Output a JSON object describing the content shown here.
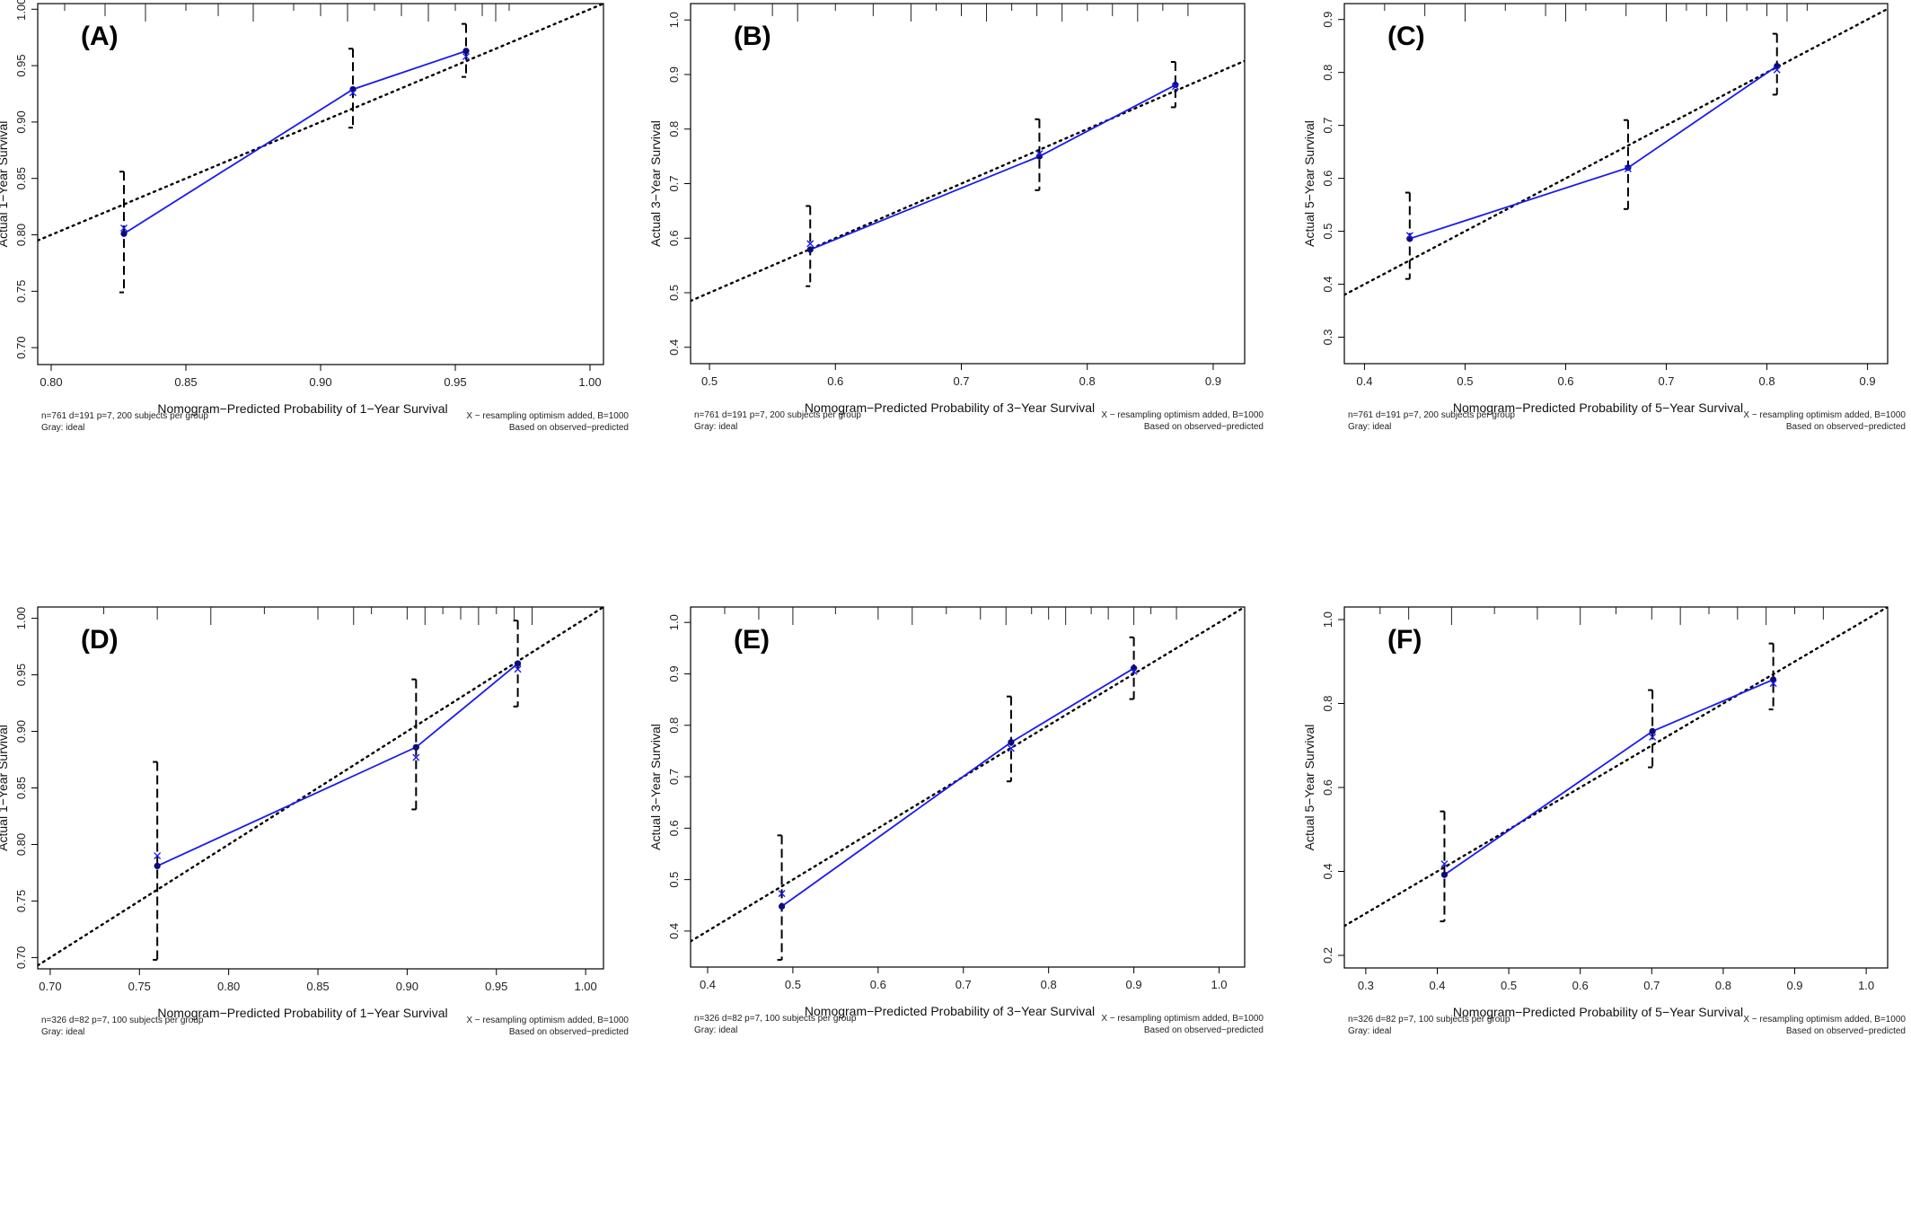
{
  "chart_data": [
    {
      "type": "line",
      "panel_label": "(A)",
      "xlabel": "Nomogram−Predicted Probability of 1−Year Survival",
      "ylabel": "Actual 1−Year Survival",
      "xlim": [
        0.795,
        1.005
      ],
      "ylim": [
        0.685,
        1.005
      ],
      "xticks": [
        "0.80",
        "0.85",
        "0.90",
        "0.95",
        "1.00"
      ],
      "yticks": [
        "0.70",
        "0.75",
        "0.80",
        "0.85",
        "0.90",
        "0.95",
        "1.00"
      ],
      "ideal_line": {
        "from": [
          0.795,
          0.795
        ],
        "to": [
          1.005,
          1.005
        ]
      },
      "observed": {
        "x": [
          0.827,
          0.912,
          0.954
        ],
        "y": [
          0.801,
          0.929,
          0.963
        ]
      },
      "bias_corrected": {
        "x": [
          0.827,
          0.912,
          0.954
        ],
        "y": [
          0.806,
          0.926,
          0.958
        ]
      },
      "ci": [
        [
          0.749,
          0.856
        ],
        [
          0.895,
          0.965
        ],
        [
          0.94,
          0.987
        ]
      ],
      "rug": [
        0.805,
        0.82,
        0.835,
        0.85,
        0.862,
        0.875,
        0.89,
        0.9,
        0.91,
        0.92,
        0.93,
        0.94,
        0.95,
        0.96,
        0.965,
        0.97
      ],
      "footnote_left": [
        "n=761 d=191 p=7, 200 subjects per group",
        "Gray: ideal"
      ],
      "footnote_right": [
        "X − resampling optimism added, B=1000",
        "Based on observed−predicted"
      ]
    },
    {
      "type": "line",
      "panel_label": "(B)",
      "xlabel": "Nomogram−Predicted Probability of 3−Year Survival",
      "ylabel": "Actual 3−Year Survival",
      "xlim": [
        0.485,
        0.925
      ],
      "ylim": [
        0.37,
        1.03
      ],
      "xticks": [
        "0.5",
        "0.6",
        "0.7",
        "0.8",
        "0.9"
      ],
      "yticks": [
        "0.4",
        "0.5",
        "0.6",
        "0.7",
        "0.8",
        "0.9",
        "1.0"
      ],
      "ideal_line": {
        "from": [
          0.485,
          0.485
        ],
        "to": [
          0.925,
          0.925
        ]
      },
      "observed": {
        "x": [
          0.58,
          0.762,
          0.87
        ],
        "y": [
          0.579,
          0.75,
          0.881
        ]
      },
      "bias_corrected": {
        "x": [
          0.58,
          0.762,
          0.87
        ],
        "y": [
          0.59,
          0.755,
          0.878
        ]
      },
      "ci": [
        [
          0.512,
          0.659
        ],
        [
          0.688,
          0.818
        ],
        [
          0.84,
          0.923
        ]
      ],
      "rug": [
        0.52,
        0.55,
        0.57,
        0.6,
        0.63,
        0.66,
        0.68,
        0.7,
        0.72,
        0.74,
        0.76,
        0.78,
        0.8,
        0.82,
        0.84,
        0.86,
        0.88
      ],
      "footnote_left": [
        "n=761 d=191 p=7, 200 subjects per group",
        "Gray: ideal"
      ],
      "footnote_right": [
        "X − resampling optimism added, B=1000",
        "Based on observed−predicted"
      ]
    },
    {
      "type": "line",
      "panel_label": "(C)",
      "xlabel": "Nomogram−Predicted Probability of 5−Year Survival",
      "ylabel": "Actual 5−Year Survival",
      "xlim": [
        0.38,
        0.92
      ],
      "ylim": [
        0.25,
        0.93
      ],
      "xticks": [
        "0.4",
        "0.5",
        "0.6",
        "0.7",
        "0.8",
        "0.9"
      ],
      "yticks": [
        "0.3",
        "0.4",
        "0.5",
        "0.6",
        "0.7",
        "0.8",
        "0.9"
      ],
      "ideal_line": {
        "from": [
          0.38,
          0.38
        ],
        "to": [
          0.92,
          0.92
        ]
      },
      "observed": {
        "x": [
          0.445,
          0.662,
          0.81
        ],
        "y": [
          0.486,
          0.62,
          0.812
        ]
      },
      "bias_corrected": {
        "x": [
          0.445,
          0.662,
          0.81
        ],
        "y": [
          0.492,
          0.618,
          0.805
        ]
      },
      "ci": [
        [
          0.41,
          0.573
        ],
        [
          0.542,
          0.71
        ],
        [
          0.758,
          0.873
        ]
      ],
      "rug": [
        0.42,
        0.46,
        0.5,
        0.54,
        0.58,
        0.6,
        0.62,
        0.66,
        0.7,
        0.72,
        0.74,
        0.76,
        0.78,
        0.8,
        0.82,
        0.84
      ],
      "footnote_left": [
        "n=761 d=191 p=7, 200 subjects per group",
        "Gray: ideal"
      ],
      "footnote_right": [
        "X − resampling optimism added, B=1000",
        "Based on observed−predicted"
      ]
    },
    {
      "type": "line",
      "panel_label": "(D)",
      "xlabel": "Nomogram−Predicted Probability of 1−Year Survival",
      "ylabel": "Actual 1−Year Survival",
      "xlim": [
        0.693,
        1.01
      ],
      "ylim": [
        0.69,
        1.01
      ],
      "xticks": [
        "0.70",
        "0.75",
        "0.80",
        "0.85",
        "0.90",
        "0.95",
        "1.00"
      ],
      "yticks": [
        "0.70",
        "0.75",
        "0.80",
        "0.85",
        "0.90",
        "0.95",
        "1.00"
      ],
      "ideal_line": {
        "from": [
          0.69,
          0.69
        ],
        "to": [
          1.01,
          1.01
        ]
      },
      "observed": {
        "x": [
          0.76,
          0.905,
          0.962
        ],
        "y": [
          0.781,
          0.886,
          0.96
        ]
      },
      "bias_corrected": {
        "x": [
          0.76,
          0.905,
          0.962
        ],
        "y": [
          0.79,
          0.877,
          0.955
        ]
      },
      "ci": [
        [
          0.698,
          0.873
        ],
        [
          0.831,
          0.946
        ],
        [
          0.922,
          0.998
        ]
      ],
      "rug": [
        0.73,
        0.76,
        0.79,
        0.82,
        0.85,
        0.87,
        0.88,
        0.9,
        0.91,
        0.92,
        0.93,
        0.94,
        0.95,
        0.96,
        0.97
      ],
      "footnote_left": [
        "n=326 d=82 p=7, 100 subjects per group",
        "Gray: ideal"
      ],
      "footnote_right": [
        "X − resampling optimism added, B=1000",
        "Based on observed−predicted"
      ]
    },
    {
      "type": "line",
      "panel_label": "(E)",
      "xlabel": "Nomogram−Predicted Probability of 3−Year Survival",
      "ylabel": "Actual 3−Year Survival",
      "xlim": [
        0.38,
        1.03
      ],
      "ylim": [
        0.33,
        1.03
      ],
      "xticks": [
        "0.4",
        "0.5",
        "0.6",
        "0.7",
        "0.8",
        "0.9",
        "1.0"
      ],
      "yticks": [
        "0.4",
        "0.5",
        "0.6",
        "0.7",
        "0.8",
        "0.9",
        "1.0"
      ],
      "ideal_line": {
        "from": [
          0.38,
          0.38
        ],
        "to": [
          1.03,
          1.03
        ]
      },
      "observed": {
        "x": [
          0.487,
          0.756,
          0.9
        ],
        "y": [
          0.448,
          0.767,
          0.911
        ]
      },
      "bias_corrected": {
        "x": [
          0.487,
          0.756,
          0.9
        ],
        "y": [
          0.473,
          0.755,
          0.905
        ]
      },
      "ci": [
        [
          0.344,
          0.586
        ],
        [
          0.691,
          0.856
        ],
        [
          0.851,
          0.971
        ]
      ],
      "rug": [
        0.42,
        0.46,
        0.5,
        0.55,
        0.6,
        0.64,
        0.68,
        0.72,
        0.75,
        0.78,
        0.8,
        0.82,
        0.85,
        0.87,
        0.9,
        0.92,
        0.95
      ],
      "footnote_left": [
        "n=326 d=82 p=7, 100 subjects per group",
        "Gray: ideal"
      ],
      "footnote_right": [
        "X − resampling optimism added, B=1000",
        "Based on observed−predicted"
      ]
    },
    {
      "type": "line",
      "panel_label": "(F)",
      "xlabel": "Nomogram−Predicted Probability of 5−Year Survival",
      "ylabel": "Actual 5−Year Survival",
      "xlim": [
        0.27,
        1.03
      ],
      "ylim": [
        0.17,
        1.03
      ],
      "xticks": [
        "0.3",
        "0.4",
        "0.5",
        "0.6",
        "0.7",
        "0.8",
        "0.9",
        "1.0"
      ],
      "yticks": [
        "0.2",
        "0.4",
        "0.6",
        "0.8",
        "1.0"
      ],
      "ideal_line": {
        "from": [
          0.27,
          0.27
        ],
        "to": [
          1.03,
          1.03
        ]
      },
      "observed": {
        "x": [
          0.41,
          0.701,
          0.87
        ],
        "y": [
          0.392,
          0.734,
          0.857
        ]
      },
      "bias_corrected": {
        "x": [
          0.41,
          0.701,
          0.87
        ],
        "y": [
          0.418,
          0.72,
          0.848
        ]
      },
      "ci": [
        [
          0.281,
          0.543
        ],
        [
          0.648,
          0.832
        ],
        [
          0.786,
          0.943
        ]
      ],
      "rug": [
        0.32,
        0.36,
        0.42,
        0.48,
        0.54,
        0.6,
        0.65,
        0.7,
        0.74,
        0.78,
        0.82,
        0.86,
        0.9,
        0.94
      ],
      "footnote_left": [
        "n=326 d=82 p=7, 100 subjects per group",
        "Gray: ideal"
      ],
      "footnote_right": [
        "X − resampling optimism added, B=1000",
        "Based on observed−predicted"
      ]
    }
  ],
  "colors": {
    "observed_line": "#1a1aee",
    "ideal_line": "#000000",
    "ci": "#000000",
    "point": "#0b0b7a"
  }
}
